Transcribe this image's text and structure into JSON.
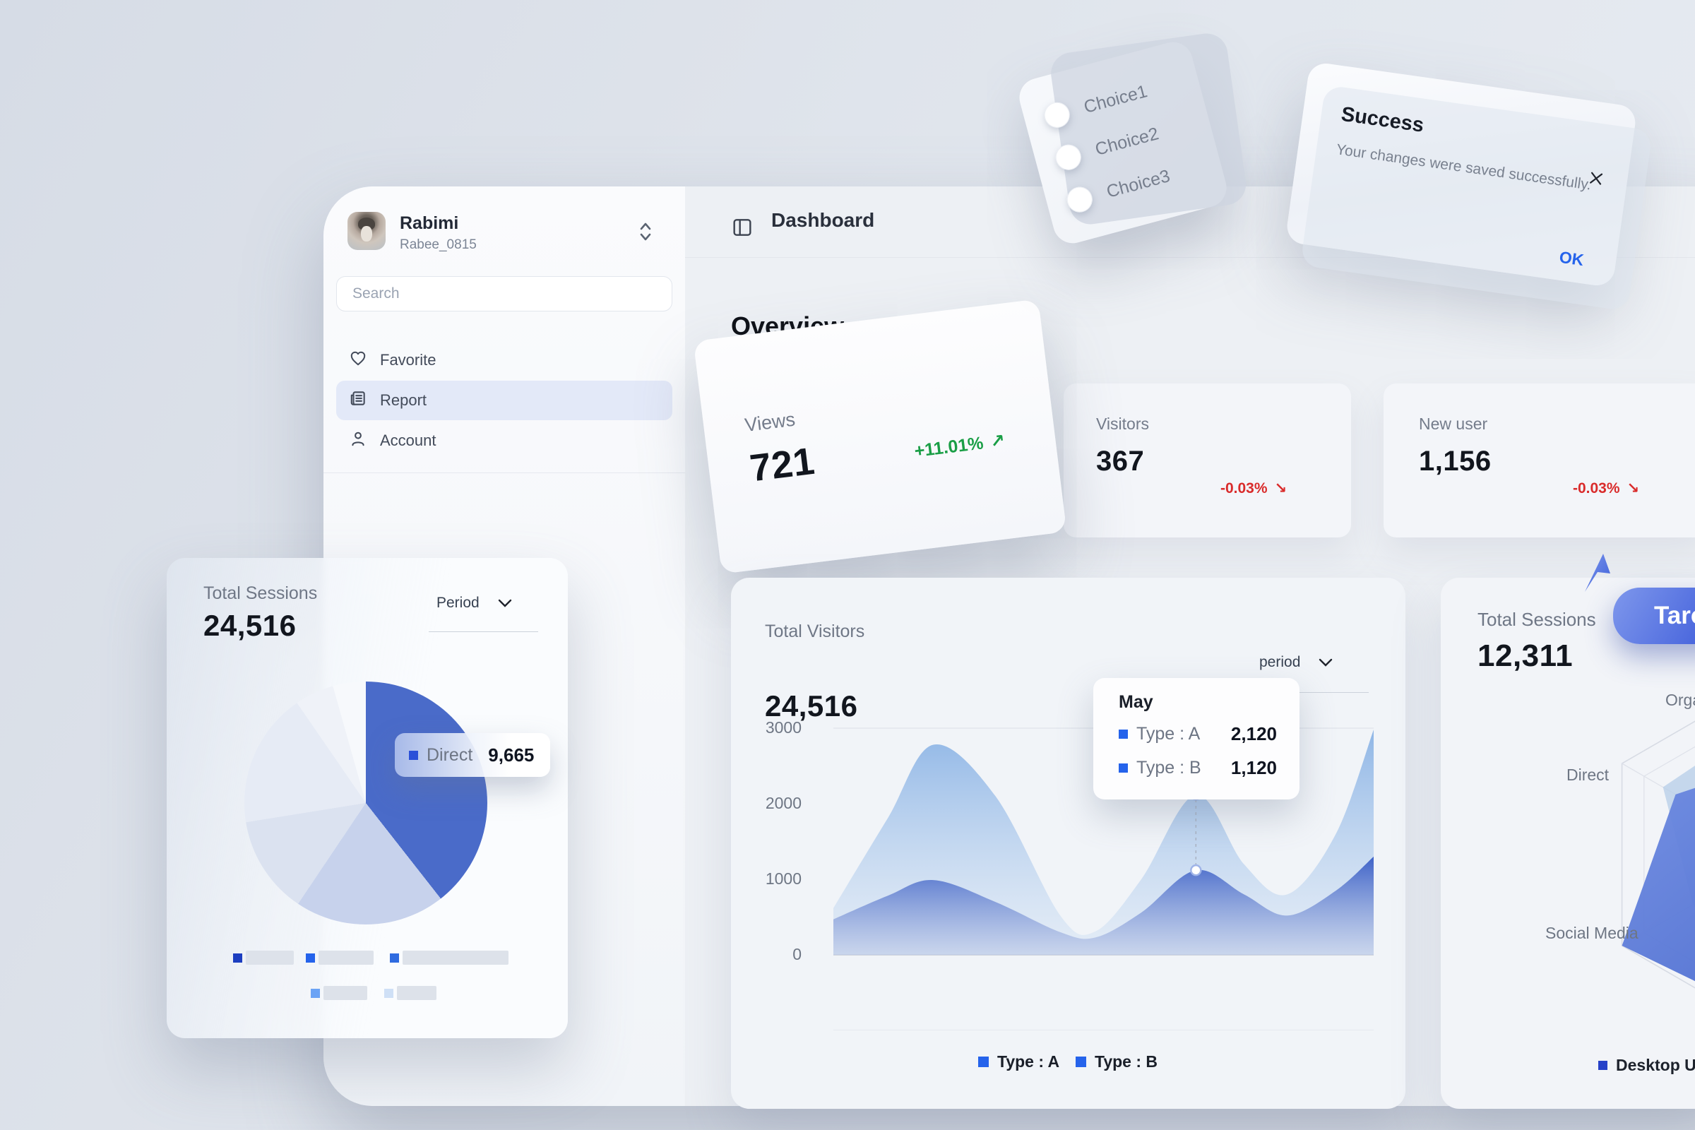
{
  "app": {
    "user": {
      "name": "Rabimi",
      "handle": "Rabee_0815"
    },
    "search_placeholder": "Search",
    "menu": [
      {
        "label": "Favorite",
        "icon": "heart-icon",
        "selected": false
      },
      {
        "label": "Report",
        "icon": "report-icon",
        "selected": true
      },
      {
        "label": "Account",
        "icon": "user-icon",
        "selected": false
      }
    ],
    "header_title": "Dashboard"
  },
  "overview": {
    "title": "Overview"
  },
  "stats": {
    "views": {
      "label": "Views",
      "value": "721",
      "delta": "+11.01%",
      "arrow": "↗",
      "direction": "up"
    },
    "visitors": {
      "label": "Visitors",
      "value": "367",
      "delta": "-0.03%",
      "arrow": "↘",
      "direction": "down"
    },
    "new_user": {
      "label": "New user",
      "value": "1,156",
      "delta": "-0.03%",
      "arrow": "↘",
      "direction": "down"
    }
  },
  "toast": {
    "title": "Success",
    "message": "Your changes were saved successfully.",
    "ok": "OK"
  },
  "choices": {
    "options": [
      {
        "label": "Choice1"
      },
      {
        "label": "Choice2"
      },
      {
        "label": "Choice3"
      }
    ]
  },
  "pie_card": {
    "title": "Total Sessions",
    "value": "24,516",
    "period": "Period",
    "tooltip": {
      "label": "Direct",
      "value": "9,665"
    }
  },
  "visitors_card": {
    "title": "Total Visitors",
    "value": "24,516",
    "period": "period",
    "yticks": [
      "3000",
      "2000",
      "1000",
      "0"
    ],
    "tooltip": {
      "title": "May",
      "rows": [
        {
          "label": "Type : A",
          "value": "2,120"
        },
        {
          "label": "Type : B",
          "value": "1,120"
        }
      ]
    },
    "legend": [
      {
        "label": "Type : A"
      },
      {
        "label": "Type : B"
      }
    ]
  },
  "radar_card": {
    "title": "Total Sessions",
    "value": "12,311",
    "cursor_label": "Taro",
    "axis_labels": {
      "top": "Organic",
      "left": "Direct",
      "bottom_left": "Social Media"
    },
    "legend": "Desktop User"
  },
  "colors": {
    "accent_blue": "#2563eb",
    "chart_blue": "#4a6bc9",
    "green": "#1a9e46",
    "red": "#d92b2b"
  },
  "chart_data": [
    {
      "type": "pie",
      "title": "Total Sessions",
      "total": 24516,
      "segments": [
        {
          "label": "Direct",
          "value": 9665,
          "color": "#4a6bc9"
        },
        {
          "label": "",
          "value": 4900,
          "color": "#c7d2ec"
        },
        {
          "label": "",
          "value": 3200,
          "color": "#dbe2f0"
        },
        {
          "label": "",
          "value": 4400,
          "color": "#e6ebf5"
        },
        {
          "label": "",
          "value": 1280,
          "color": "#eff2f8"
        },
        {
          "label": "",
          "value": 1071,
          "color": "#f7f9fc"
        }
      ]
    },
    {
      "type": "area",
      "title": "Total Visitors",
      "ymax": 3000,
      "yticks": [
        0,
        1000,
        2000,
        3000
      ],
      "highlight": {
        "x": 0.671,
        "label": "May"
      },
      "series": [
        {
          "name": "Type : A",
          "top_color": "#8fb6e6",
          "bottom_color": "#dbe7f5",
          "points": [
            [
              0,
              620
            ],
            [
              0.1,
              1800
            ],
            [
              0.185,
              2780
            ],
            [
              0.3,
              2100
            ],
            [
              0.42,
              520
            ],
            [
              0.485,
              310
            ],
            [
              0.57,
              1000
            ],
            [
              0.671,
              2120
            ],
            [
              0.76,
              1200
            ],
            [
              0.84,
              800
            ],
            [
              0.93,
              1600
            ],
            [
              1,
              2980
            ]
          ]
        },
        {
          "name": "Type : B",
          "top_color": "#3f63c8",
          "bottom_color": "#b3c2e4",
          "points": [
            [
              0,
              470
            ],
            [
              0.1,
              780
            ],
            [
              0.185,
              990
            ],
            [
              0.3,
              700
            ],
            [
              0.42,
              300
            ],
            [
              0.485,
              230
            ],
            [
              0.57,
              560
            ],
            [
              0.671,
              1120
            ],
            [
              0.76,
              800
            ],
            [
              0.84,
              520
            ],
            [
              0.93,
              850
            ],
            [
              1,
              1300
            ]
          ]
        }
      ]
    },
    {
      "type": "radar",
      "title": "Total Sessions",
      "axes": [
        "Organic",
        "",
        "",
        "",
        "Social Media",
        "Direct"
      ],
      "series": [
        {
          "name": "series-light",
          "color": "#b9cfe9",
          "values": [
            0.8,
            0.85,
            0.75,
            0.8,
            0.55,
            0.74
          ]
        },
        {
          "name": "Desktop User",
          "color": "#4e6fd2",
          "values": [
            0.52,
            0.9,
            0.95,
            0.92,
            1.0,
            0.66
          ]
        }
      ]
    }
  ]
}
